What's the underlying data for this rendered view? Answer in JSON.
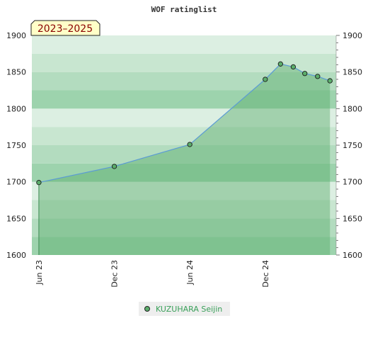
{
  "chart_data": {
    "type": "area",
    "title": "WOF ratinglist",
    "badge": "2023–2025",
    "x": [
      "2023-06-01",
      "2023-12-01",
      "2024-06-01",
      "2024-12-01",
      "2025-01-07",
      "2025-02-07",
      "2025-03-07",
      "2025-04-07",
      "2025-05-07"
    ],
    "series": [
      {
        "name": "KUZUHARA Seijin",
        "values": [
          1699,
          1721,
          1751,
          1840,
          1861,
          1857,
          1848,
          1844,
          1838
        ]
      }
    ],
    "xticks": [
      {
        "date": "2023-06-01",
        "label": "Jun 23"
      },
      {
        "date": "2023-12-01",
        "label": "Dec 23"
      },
      {
        "date": "2024-06-01",
        "label": "Jun 24"
      },
      {
        "date": "2024-12-01",
        "label": "Dec 24"
      }
    ],
    "yticks": [
      1600,
      1650,
      1700,
      1750,
      1800,
      1850,
      1900
    ],
    "ylim": [
      1600,
      1900
    ],
    "xlim": [
      "2023-05-15",
      "2025-05-22"
    ],
    "xlabel": "",
    "ylabel": "",
    "grid": true,
    "legend_position": "bottom-center",
    "colors": {
      "line": "#5b9bd5",
      "marker": "#5cae6c",
      "fill": "#5cae6c",
      "legend_text": "#3aa05a",
      "badge_bg": "#ffffc8",
      "badge_text": "#8b0000"
    }
  }
}
